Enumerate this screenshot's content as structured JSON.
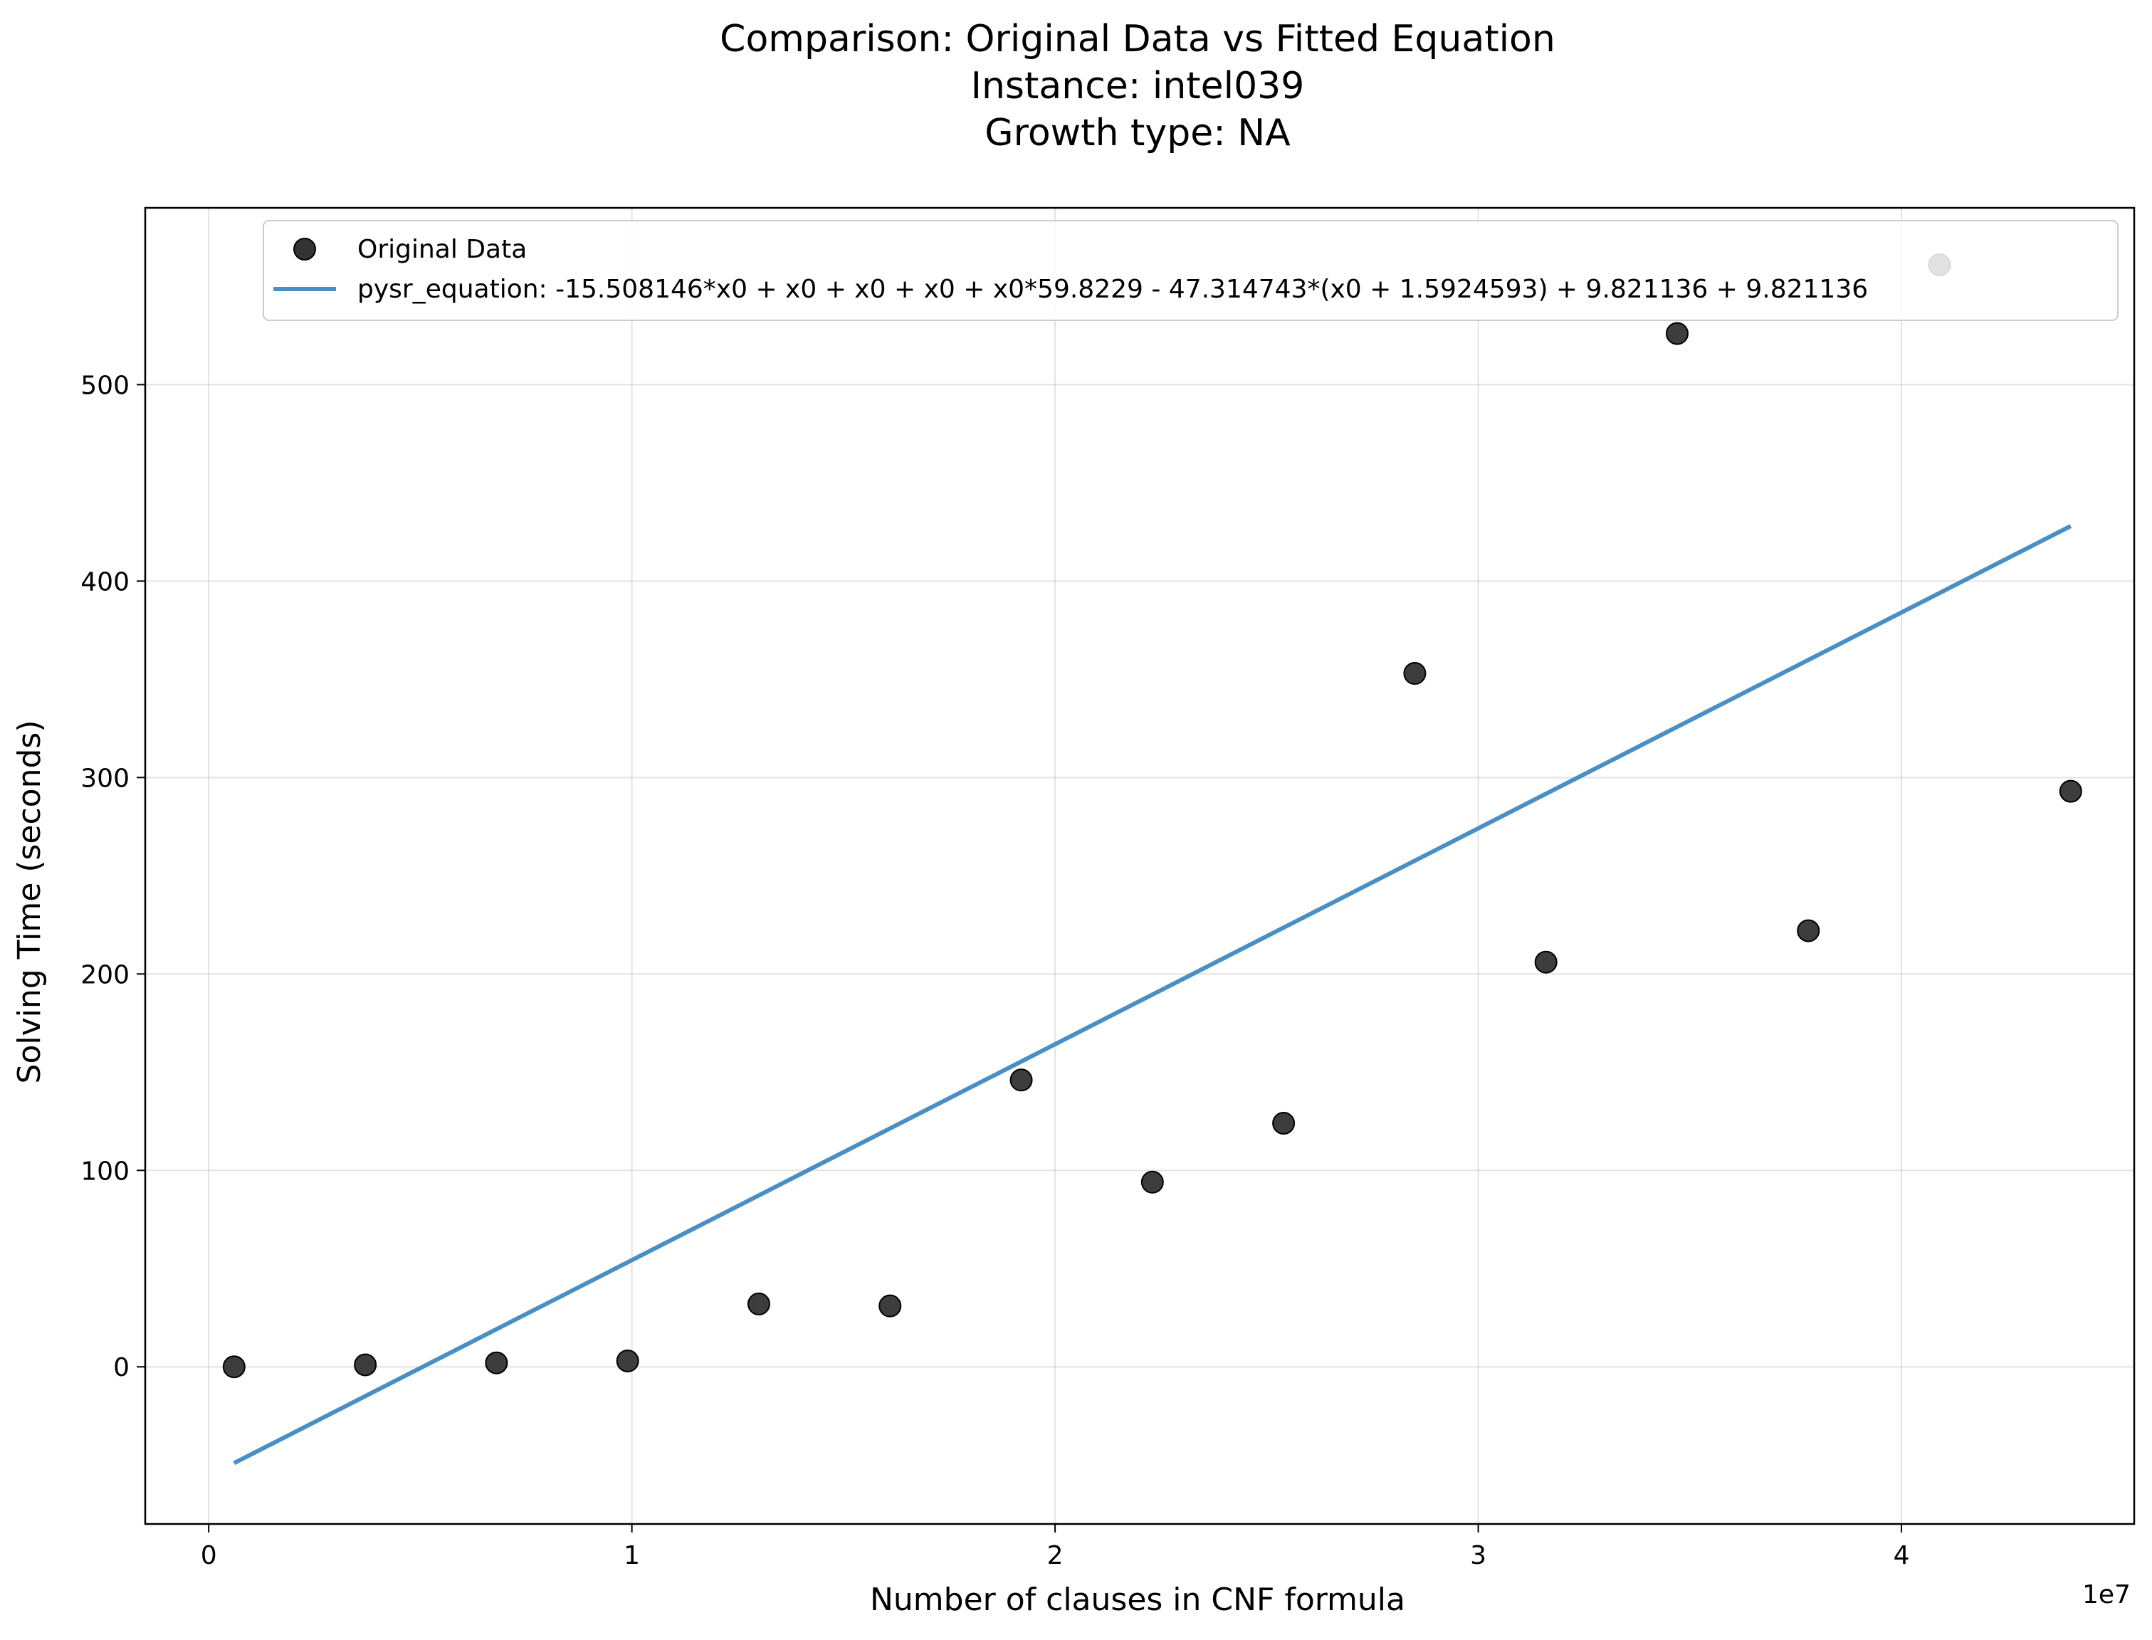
{
  "chart_data": {
    "type": "scatter",
    "title_lines": [
      "Comparison: Original Data vs Fitted Equation",
      "Instance: intel039",
      "Growth type: NA"
    ],
    "xlabel": "Number of clauses in CNF formula",
    "ylabel": "Solving Time (seconds)",
    "x_offset_label": "1e7",
    "xlim": [
      -0.15,
      4.55
    ],
    "ylim": [
      -80,
      590
    ],
    "x_scale_note": "x values in units of 1e7 clauses",
    "x_ticks": [
      0,
      1,
      2,
      3,
      4
    ],
    "x_tick_labels": [
      "0",
      "1",
      "2",
      "3",
      "4"
    ],
    "y_ticks": [
      0,
      100,
      200,
      300,
      400,
      500
    ],
    "y_tick_labels": [
      "0",
      "100",
      "200",
      "300",
      "400",
      "500"
    ],
    "grid": true,
    "legend_position": "top-right",
    "legend": [
      "Original Data",
      "pysr_equation: -15.508146*x0 + x0 + x0 + x0 + x0*59.8229 - 47.314743*(x0 + 1.5924593) + 9.821136 + 9.821136"
    ],
    "series": [
      {
        "name": "Original Data",
        "kind": "scatter",
        "color": "#333333",
        "x": [
          0.06,
          0.37,
          0.68,
          0.99,
          1.3,
          1.61,
          1.92,
          2.23,
          2.54,
          2.85,
          3.16,
          3.47,
          3.78,
          4.09,
          4.4
        ],
        "y": [
          0,
          1,
          2,
          3,
          32,
          31,
          146,
          94,
          124,
          353,
          206,
          526,
          222,
          561,
          293
        ]
      },
      {
        "name": "pysr_equation: -15.508146*x0 + x0 + x0 + x0 + x0*59.8229 - 47.314743*(x0 + 1.5924593) + 9.821136 + 9.821136",
        "kind": "line",
        "color": "#4a8fc4",
        "x": [
          0.06,
          4.4
        ],
        "y": [
          -49,
          428
        ]
      }
    ]
  }
}
